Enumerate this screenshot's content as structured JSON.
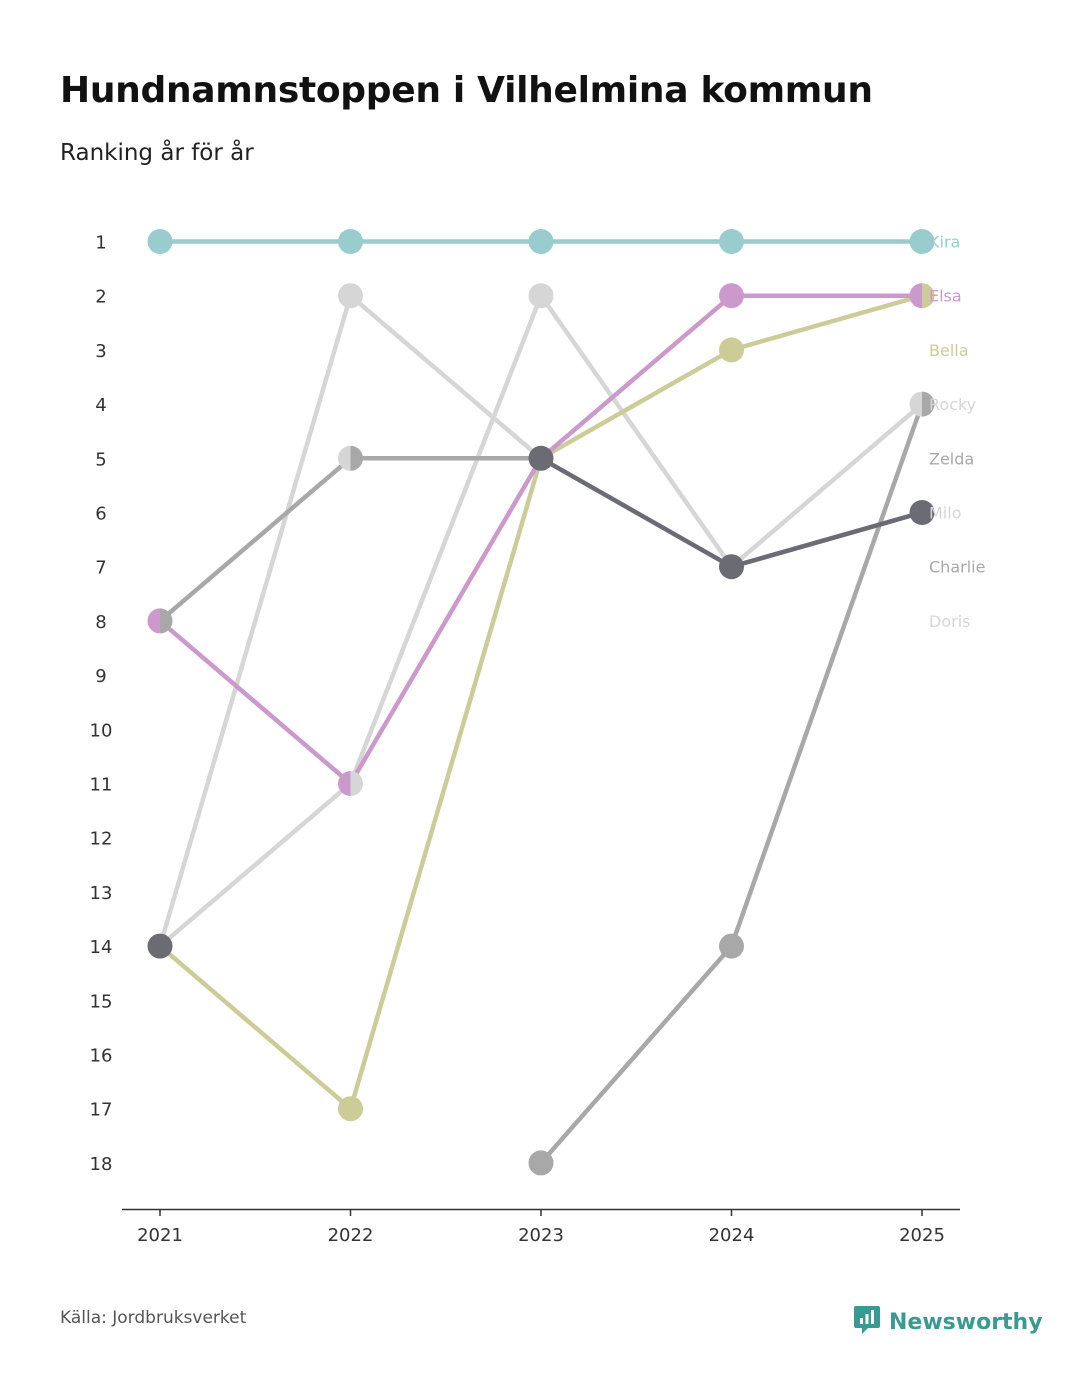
{
  "title": "Hundnamnstoppen i Vilhelmina kommun",
  "subtitle": "Ranking år för år",
  "source": "Källa: Jordbruksverket",
  "brand": {
    "name": "Newsworthy",
    "color": "#3a9a92",
    "icon": "newsworthy-logo-icon"
  },
  "chart_data": {
    "type": "line",
    "subtype": "bump",
    "title": "Hundnamnstoppen i Vilhelmina kommun",
    "subtitle": "Ranking år för år",
    "x": [
      "2021",
      "2022",
      "2023",
      "2024",
      "2025"
    ],
    "y_ticks": [
      "1",
      "2",
      "3",
      "4",
      "5",
      "6",
      "7",
      "8",
      "9",
      "10",
      "11",
      "12",
      "13",
      "14",
      "15",
      "16",
      "17",
      "18"
    ],
    "ylim": [
      1,
      18
    ],
    "y_inverted": true,
    "series": [
      {
        "name": "Doris",
        "color": "#d6d6d6",
        "values": [
          14,
          2,
          5,
          7,
          6
        ]
      },
      {
        "name": "Rocky",
        "color": "#d6d6d6",
        "values": [
          14,
          11,
          2,
          7,
          4
        ]
      },
      {
        "name": "Charlie",
        "color": "#a8a8a8",
        "values": [
          null,
          null,
          18,
          14,
          4
        ]
      },
      {
        "name": "Zelda",
        "color": "#a8a8a8",
        "values": [
          8,
          5,
          5,
          null,
          null
        ]
      },
      {
        "name": "Bella",
        "color": "#cccc99",
        "values": [
          14,
          17,
          5,
          3,
          2
        ]
      },
      {
        "name": "Elsa",
        "color": "#cc99cc",
        "values": [
          8,
          11,
          5,
          2,
          2
        ]
      },
      {
        "name": "Milo",
        "color": "#6b6b73",
        "values": [
          14,
          null,
          5,
          7,
          6
        ]
      },
      {
        "name": "Kira",
        "color": "#99cccc",
        "values": [
          1,
          1,
          1,
          1,
          1
        ]
      }
    ],
    "labels": [
      {
        "name": "Kira",
        "rank": 1,
        "color": "#99cccc"
      },
      {
        "name": "Elsa",
        "rank": 2,
        "color": "#cc99cc"
      },
      {
        "name": "Bella",
        "rank": 3,
        "color": "#cccc99"
      },
      {
        "name": "Rocky",
        "rank": 4,
        "color": "#d6d6d6"
      },
      {
        "name": "Zelda",
        "rank": 5,
        "color": "#a8a8a8"
      },
      {
        "name": "Milo",
        "rank": 6,
        "color": "#d6d6d6"
      },
      {
        "name": "Charlie",
        "rank": 7,
        "color": "#a8a8a8"
      },
      {
        "name": "Doris",
        "rank": 8,
        "color": "#d6d6d6"
      }
    ],
    "split_markers": [
      {
        "x": "2021",
        "rank": 8,
        "left": "#cc99cc",
        "right": "#a8a8a8"
      },
      {
        "x": "2022",
        "rank": 5,
        "left": "#d6d6d6",
        "right": "#a8a8a8"
      },
      {
        "x": "2022",
        "rank": 11,
        "left": "#cc99cc",
        "right": "#d6d6d6"
      },
      {
        "x": "2025",
        "rank": 2,
        "left": "#cc99cc",
        "right": "#cccc99"
      },
      {
        "x": "2025",
        "rank": 4,
        "left": "#d6d6d6",
        "right": "#a8a8a8"
      }
    ],
    "solid_markers": [
      {
        "x": "2021",
        "rank": 14,
        "color": "#6b6b73"
      },
      {
        "x": "2022",
        "rank": 2,
        "color": "#d6d6d6"
      },
      {
        "x": "2023",
        "rank": 2,
        "color": "#d6d6d6"
      },
      {
        "x": "2023",
        "rank": 5,
        "color": "#6b6b73"
      },
      {
        "x": "2024",
        "rank": 7,
        "color": "#6b6b73"
      },
      {
        "x": "2025",
        "rank": 6,
        "color": "#6b6b73"
      }
    ]
  }
}
